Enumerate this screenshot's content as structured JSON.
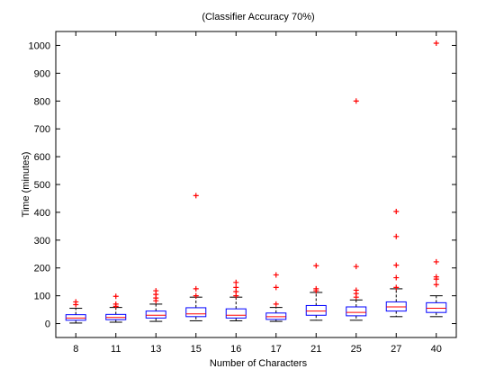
{
  "chart_data": {
    "type": "box",
    "title": "(Classifier Accuracy 70%)",
    "xlabel": "Number of Characters",
    "ylabel": "Time (minutes)",
    "ylim": [
      -50,
      1050
    ],
    "yticks": [
      0,
      100,
      200,
      300,
      400,
      500,
      600,
      700,
      800,
      900,
      1000
    ],
    "grid": false,
    "categories": [
      "8",
      "11",
      "13",
      "15",
      "16",
      "17",
      "21",
      "25",
      "27",
      "40"
    ],
    "boxes": [
      {
        "category": "8",
        "whisker_low": 2,
        "q1": 12,
        "median": 20,
        "q3": 32,
        "whisker_high": 55,
        "outliers": [
          68,
          78
        ]
      },
      {
        "category": "11",
        "whisker_low": 5,
        "q1": 14,
        "median": 22,
        "q3": 33,
        "whisker_high": 58,
        "outliers": [
          62,
          70,
          98
        ]
      },
      {
        "category": "13",
        "whisker_low": 8,
        "q1": 20,
        "median": 30,
        "q3": 45,
        "whisker_high": 70,
        "outliers": [
          82,
          92,
          105,
          118
        ]
      },
      {
        "category": "15",
        "whisker_low": 10,
        "q1": 25,
        "median": 35,
        "q3": 57,
        "whisker_high": 95,
        "outliers": [
          100,
          125,
          460
        ]
      },
      {
        "category": "16",
        "whisker_low": 10,
        "q1": 20,
        "median": 30,
        "q3": 53,
        "whisker_high": 95,
        "outliers": [
          100,
          115,
          130,
          148
        ]
      },
      {
        "category": "17",
        "whisker_low": 8,
        "q1": 15,
        "median": 25,
        "q3": 38,
        "whisker_high": 58,
        "outliers": [
          70,
          130,
          175
        ]
      },
      {
        "category": "21",
        "whisker_low": 12,
        "q1": 30,
        "median": 45,
        "q3": 65,
        "whisker_high": 112,
        "outliers": [
          118,
          125,
          208
        ]
      },
      {
        "category": "25",
        "whisker_low": 12,
        "q1": 28,
        "median": 40,
        "q3": 60,
        "whisker_high": 85,
        "outliers": [
          95,
          108,
          120,
          205,
          800
        ]
      },
      {
        "category": "27",
        "whisker_low": 25,
        "q1": 45,
        "median": 60,
        "q3": 78,
        "whisker_high": 125,
        "outliers": [
          130,
          165,
          210,
          313,
          403
        ]
      },
      {
        "category": "40",
        "whisker_low": 25,
        "q1": 40,
        "median": 55,
        "q3": 75,
        "whisker_high": 100,
        "outliers": [
          140,
          160,
          168,
          222,
          1008
        ]
      }
    ],
    "colors": {
      "box": "#0000ff",
      "median": "#ff0000",
      "whisker": "#000000",
      "outlier": "#ff0000"
    }
  }
}
